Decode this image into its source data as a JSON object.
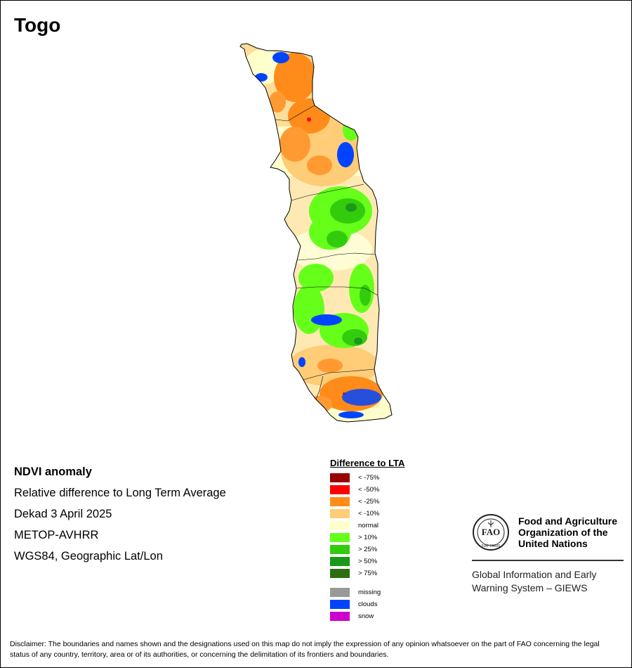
{
  "title": "Togo",
  "info": {
    "heading": "NDVI anomaly",
    "line1": "Relative difference to Long Term Average",
    "line2": "Dekad 3 April 2025",
    "line3": "METOP-AVHRR",
    "line4": "WGS84, Geographic Lat/Lon"
  },
  "legend": {
    "title": "Difference to LTA",
    "items": [
      {
        "label": "< -75%",
        "color": "#990000"
      },
      {
        "label": "< -50%",
        "color": "#ff0000"
      },
      {
        "label": "< -25%",
        "color": "#ff8c1a"
      },
      {
        "label": "< -10%",
        "color": "#ffcc77"
      },
      {
        "label": "normal",
        "color": "#ffffcc"
      },
      {
        "label": "> 10%",
        "color": "#66ff1a"
      },
      {
        "label": "> 25%",
        "color": "#33cc0d"
      },
      {
        "label": "> 50%",
        "color": "#199919"
      },
      {
        "label": "> 75%",
        "color": "#2d6e10"
      }
    ],
    "extra": [
      {
        "label": "missing",
        "color": "#999999"
      },
      {
        "label": "clouds",
        "color": "#0044ff"
      },
      {
        "label": "snow",
        "color": "#cc00cc"
      }
    ]
  },
  "fao": {
    "logo_text": "FAO",
    "logo_motto": "FIAT PANIS",
    "name_line1": "Food and Agriculture",
    "name_line2": "Organization of the",
    "name_line3": "United Nations",
    "giews_line1": "Global Information and Early",
    "giews_line2": "Warning System – GIEWS"
  },
  "disclaimer": "Disclaimer: The boundaries and names shown and the designations used on this map do not imply the expression of any opinion whatsoever on the part of FAO concerning the legal status of any country, territory, area or of its authorities, or concerning the delimitation of its frontiers and boundaries."
}
